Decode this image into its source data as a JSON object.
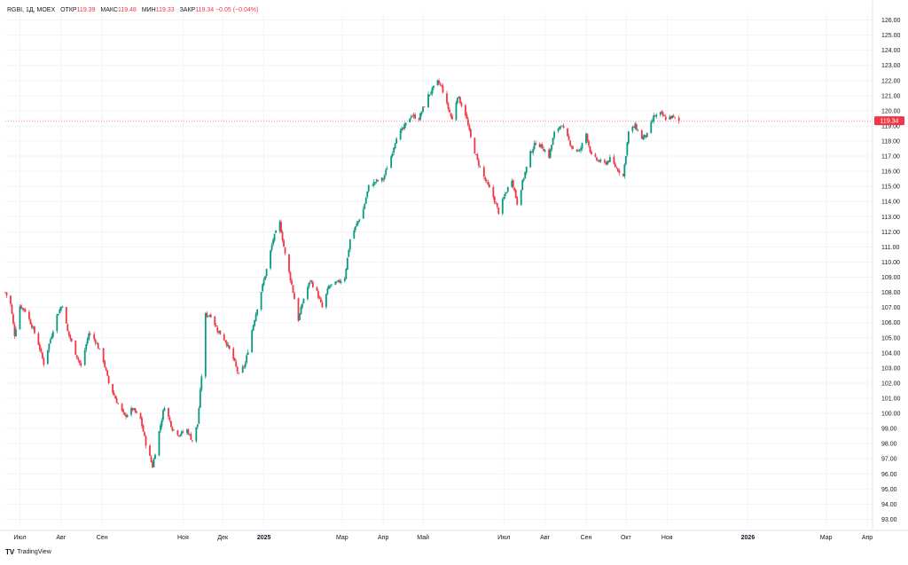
{
  "header": {
    "symbol": "RGBI, 1Д, MOEX",
    "open_label": "ОТКР",
    "open_value": "119.39",
    "high_label": "МАКС",
    "high_value": "119.48",
    "low_label": "МИН",
    "low_value": "119.33",
    "close_label": "ЗАКР",
    "close_value": "119.34",
    "change": "−0.05 (−0.04%)"
  },
  "branding": {
    "logo_text": "TradingView"
  },
  "colors": {
    "up": "#089981",
    "down": "#f23645",
    "grid": "#f0f3fa",
    "text": "#131722"
  },
  "chart_data": {
    "type": "candlestick",
    "y_axis": {
      "range": [
        92.5,
        126.5
      ],
      "ticks": [
        "126.00",
        "125.00",
        "124.00",
        "123.00",
        "122.00",
        "121.00",
        "120.00",
        "119.00",
        "118.00",
        "117.00",
        "116.00",
        "115.00",
        "114.00",
        "113.00",
        "112.00",
        "111.00",
        "110.00",
        "109.00",
        "108.00",
        "107.00",
        "106.00",
        "105.00",
        "104.00",
        "103.00",
        "102.00",
        "101.00",
        "100.00",
        "99.00",
        "98.00",
        "97.00",
        "96.00",
        "95.00",
        "94.00",
        "93.00"
      ]
    },
    "x_axis": {
      "start": "2024-06-20",
      "end": "2026-04-05",
      "ticks": [
        {
          "date": "2024-07-01",
          "label": "Июл",
          "bold": false
        },
        {
          "date": "2024-08-01",
          "label": "Авг",
          "bold": false
        },
        {
          "date": "2024-09-01",
          "label": "Сен",
          "bold": false
        },
        {
          "date": "2024-11-01",
          "label": "Ноя",
          "bold": false
        },
        {
          "date": "2024-12-01",
          "label": "Дек",
          "bold": false
        },
        {
          "date": "2025-01-01",
          "label": "2025",
          "bold": true
        },
        {
          "date": "2025-03-01",
          "label": "Мар",
          "bold": false
        },
        {
          "date": "2025-04-01",
          "label": "Апр",
          "bold": false
        },
        {
          "date": "2025-05-01",
          "label": "Май",
          "bold": false
        },
        {
          "date": "2025-07-01",
          "label": "Июл",
          "bold": false
        },
        {
          "date": "2025-08-01",
          "label": "Авг",
          "bold": false
        },
        {
          "date": "2025-09-01",
          "label": "Сен",
          "bold": false
        },
        {
          "date": "2025-10-01",
          "label": "Окт",
          "bold": false
        },
        {
          "date": "2025-11-01",
          "label": "Ноя",
          "bold": false
        },
        {
          "date": "2026-01-01",
          "label": "2026",
          "bold": true
        },
        {
          "date": "2026-03-01",
          "label": "Мар",
          "bold": false
        },
        {
          "date": "2026-04-01",
          "label": "Апр",
          "bold": false
        }
      ]
    },
    "last_price": {
      "value": 119.34,
      "label": "119.34"
    },
    "close_path": [
      [
        "2024-06-20",
        108.0
      ],
      [
        "2024-06-24",
        107.2
      ],
      [
        "2024-06-27",
        105.2
      ],
      [
        "2024-07-01",
        107.1
      ],
      [
        "2024-07-05",
        106.8
      ],
      [
        "2024-07-10",
        105.8
      ],
      [
        "2024-07-15",
        104.6
      ],
      [
        "2024-07-19",
        103.3
      ],
      [
        "2024-07-24",
        104.9
      ],
      [
        "2024-07-29",
        106.5
      ],
      [
        "2024-08-02",
        107.2
      ],
      [
        "2024-08-06",
        105.4
      ],
      [
        "2024-08-12",
        104.0
      ],
      [
        "2024-08-16",
        103.1
      ],
      [
        "2024-08-22",
        105.3
      ],
      [
        "2024-08-27",
        104.8
      ],
      [
        "2024-09-02",
        103.5
      ],
      [
        "2024-09-06",
        102.0
      ],
      [
        "2024-09-12",
        100.8
      ],
      [
        "2024-09-18",
        99.8
      ],
      [
        "2024-09-24",
        100.3
      ],
      [
        "2024-09-30",
        99.6
      ],
      [
        "2024-10-04",
        98.0
      ],
      [
        "2024-10-09",
        96.5
      ],
      [
        "2024-10-14",
        98.8
      ],
      [
        "2024-10-18",
        100.5
      ],
      [
        "2024-10-24",
        99.0
      ],
      [
        "2024-10-29",
        98.6
      ],
      [
        "2024-11-04",
        98.9
      ],
      [
        "2024-11-08",
        98.2
      ],
      [
        "2024-11-12",
        99.3
      ],
      [
        "2024-11-15",
        102.5
      ],
      [
        "2024-11-18",
        106.5
      ],
      [
        "2024-11-22",
        106.5
      ],
      [
        "2024-11-27",
        105.5
      ],
      [
        "2024-12-03",
        104.8
      ],
      [
        "2024-12-09",
        103.6
      ],
      [
        "2024-12-13",
        102.5
      ],
      [
        "2024-12-18",
        103.3
      ],
      [
        "2024-12-23",
        105.5
      ],
      [
        "2024-12-27",
        107.0
      ],
      [
        "2025-01-03",
        109.5
      ],
      [
        "2025-01-08",
        111.5
      ],
      [
        "2025-01-13",
        112.6
      ],
      [
        "2025-01-17",
        110.5
      ],
      [
        "2025-01-22",
        108.5
      ],
      [
        "2025-01-27",
        106.2
      ],
      [
        "2025-01-31",
        107.6
      ],
      [
        "2025-02-05",
        108.8
      ],
      [
        "2025-02-10",
        108.0
      ],
      [
        "2025-02-14",
        107.0
      ],
      [
        "2025-02-19",
        108.4
      ],
      [
        "2025-02-25",
        108.6
      ],
      [
        "2025-03-03",
        109.0
      ],
      [
        "2025-03-07",
        111.5
      ],
      [
        "2025-03-12",
        112.5
      ],
      [
        "2025-03-17",
        113.5
      ],
      [
        "2025-03-21",
        115.0
      ],
      [
        "2025-03-26",
        115.3
      ],
      [
        "2025-04-01",
        115.5
      ],
      [
        "2025-04-07",
        117.0
      ],
      [
        "2025-04-11",
        118.3
      ],
      [
        "2025-04-16",
        118.8
      ],
      [
        "2025-04-22",
        119.7
      ],
      [
        "2025-04-28",
        119.5
      ],
      [
        "2025-05-05",
        121.0
      ],
      [
        "2025-05-12",
        121.9
      ],
      [
        "2025-05-15",
        121.6
      ],
      [
        "2025-05-19",
        120.4
      ],
      [
        "2025-05-23",
        119.4
      ],
      [
        "2025-05-27",
        121.0
      ],
      [
        "2025-06-02",
        119.8
      ],
      [
        "2025-06-06",
        118.2
      ],
      [
        "2025-06-11",
        116.7
      ],
      [
        "2025-06-17",
        115.4
      ],
      [
        "2025-06-23",
        114.3
      ],
      [
        "2025-06-27",
        113.3
      ],
      [
        "2025-07-02",
        114.5
      ],
      [
        "2025-07-07",
        115.5
      ],
      [
        "2025-07-11",
        113.9
      ],
      [
        "2025-07-16",
        115.6
      ],
      [
        "2025-07-21",
        117.2
      ],
      [
        "2025-07-25",
        117.9
      ],
      [
        "2025-07-30",
        117.6
      ],
      [
        "2025-08-04",
        117.0
      ],
      [
        "2025-08-08",
        118.5
      ],
      [
        "2025-08-13",
        119.1
      ],
      [
        "2025-08-18",
        118.2
      ],
      [
        "2025-08-22",
        117.5
      ],
      [
        "2025-08-27",
        117.3
      ],
      [
        "2025-09-01",
        118.5
      ],
      [
        "2025-09-05",
        117.0
      ],
      [
        "2025-09-10",
        116.7
      ],
      [
        "2025-09-15",
        116.5
      ],
      [
        "2025-09-19",
        116.8
      ],
      [
        "2025-09-24",
        116.2
      ],
      [
        "2025-09-29",
        115.7
      ],
      [
        "2025-10-03",
        118.6
      ],
      [
        "2025-10-08",
        119.0
      ],
      [
        "2025-10-13",
        118.2
      ],
      [
        "2025-10-17",
        118.4
      ],
      [
        "2025-10-22",
        119.6
      ],
      [
        "2025-10-27",
        119.8
      ],
      [
        "2025-10-31",
        119.5
      ],
      [
        "2025-11-05",
        119.6
      ],
      [
        "2025-11-10",
        119.3
      ]
    ]
  }
}
